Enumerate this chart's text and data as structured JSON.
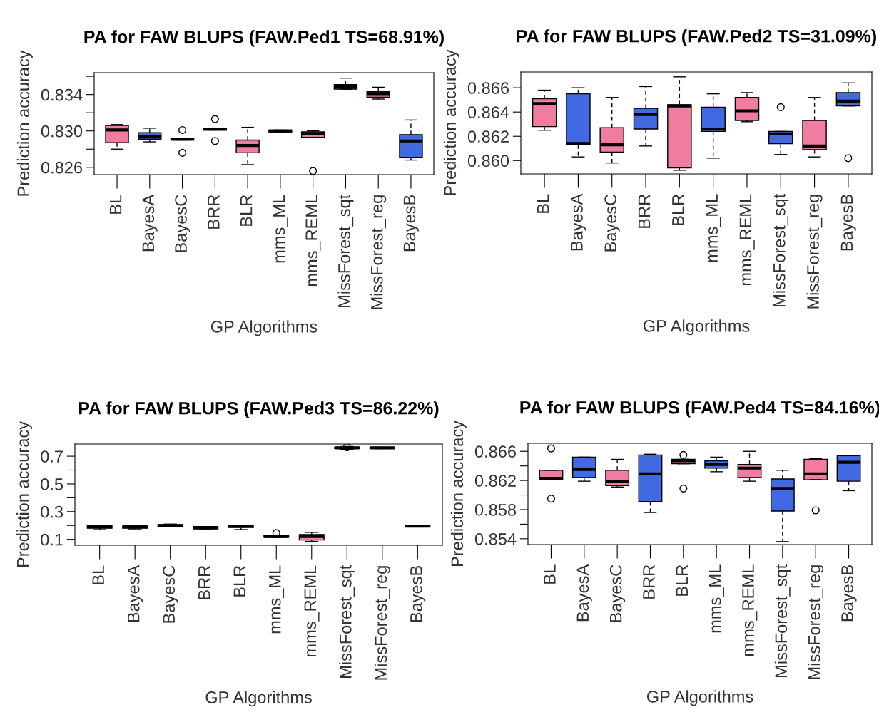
{
  "chart_data": [
    {
      "type": "box",
      "title": "PA for FAW BLUPS (FAW.Ped1 TS=68.91%)",
      "xlabel": "GP Algorithms",
      "ylabel": "Prediction accuracy",
      "categories": [
        "BL",
        "BayesA",
        "BayesC",
        "BRR",
        "BLR",
        "mms_ML",
        "mms_REML",
        "MissForest_sqt",
        "MissForest_reg",
        "BayesB"
      ],
      "colors": [
        "#f07ca0",
        "#4169e1",
        "#f07ca0",
        "#4169e1",
        "#f07ca0",
        "#4169e1",
        "#f07ca0",
        "#4169e1",
        "#f07ca0",
        "#4169e1"
      ],
      "ylim": [
        0.8252,
        0.8364
      ],
      "yticks": [
        0.826,
        {
          "value": 0.828,
          "label": null
        },
        {
          "value": 0.83,
          "label": "0.830"
        },
        {
          "value": 0.832,
          "label": null
        },
        0.834,
        {
          "value": 0.836,
          "label": null
        }
      ],
      "boxes": [
        {
          "low": 0.828,
          "q1": 0.8287,
          "median": 0.8301,
          "q3": 0.8306,
          "high": 0.8307
        },
        {
          "low": 0.8288,
          "q1": 0.8291,
          "median": 0.8294,
          "q3": 0.8298,
          "high": 0.8303
        },
        {
          "low": 0.829,
          "q1": 0.829,
          "median": 0.8291,
          "q3": 0.8292,
          "high": 0.8292,
          "outliers": [
            0.8301,
            0.8276
          ]
        },
        {
          "low": 0.8301,
          "q1": 0.8301,
          "median": 0.8302,
          "q3": 0.8303,
          "high": 0.8303,
          "outliers": [
            0.8313,
            0.8289
          ]
        },
        {
          "low": 0.8263,
          "q1": 0.8276,
          "median": 0.8284,
          "q3": 0.829,
          "high": 0.8304
        },
        {
          "low": 0.8298,
          "q1": 0.8299,
          "median": 0.83,
          "q3": 0.8301,
          "high": 0.8301
        },
        {
          "low": 0.8293,
          "q1": 0.8293,
          "median": 0.8297,
          "q3": 0.8299,
          "high": 0.83,
          "outliers": [
            0.8256
          ]
        },
        {
          "low": 0.8346,
          "q1": 0.8346,
          "median": 0.8349,
          "q3": 0.8351,
          "high": 0.8358
        },
        {
          "low": 0.8335,
          "q1": 0.8337,
          "median": 0.8341,
          "q3": 0.8343,
          "high": 0.8348
        },
        {
          "low": 0.8268,
          "q1": 0.8271,
          "median": 0.8289,
          "q3": 0.8296,
          "high": 0.8312
        }
      ]
    },
    {
      "type": "box",
      "title": "PA for FAW BLUPS (FAW.Ped2 TS=31.09%)",
      "xlabel": "GP Algorithms",
      "ylabel": "Prediction accuracy",
      "categories": [
        "BL",
        "BayesA",
        "BayesC",
        "BRR",
        "BLR",
        "mms_ML",
        "mms_REML",
        "MissForest_sqt",
        "MissForest_reg",
        "BayesB"
      ],
      "colors": [
        "#f07ca0",
        "#4169e1",
        "#f07ca0",
        "#4169e1",
        "#f07ca0",
        "#4169e1",
        "#f07ca0",
        "#4169e1",
        "#f07ca0",
        "#4169e1"
      ],
      "ylim": [
        0.8589,
        0.8673
      ],
      "yticks": [
        {
          "value": 0.86,
          "label": "0.860"
        },
        0.862,
        0.864,
        0.866
      ],
      "boxes": [
        {
          "low": 0.8625,
          "q1": 0.8628,
          "median": 0.8647,
          "q3": 0.8651,
          "high": 0.8658
        },
        {
          "low": 0.8603,
          "q1": 0.8613,
          "median": 0.8614,
          "q3": 0.8655,
          "high": 0.866
        },
        {
          "low": 0.8598,
          "q1": 0.8607,
          "median": 0.8613,
          "q3": 0.8627,
          "high": 0.8652
        },
        {
          "low": 0.8612,
          "q1": 0.8626,
          "median": 0.8638,
          "q3": 0.8643,
          "high": 0.8661
        },
        {
          "low": 0.8592,
          "q1": 0.8594,
          "median": 0.8645,
          "q3": 0.8646,
          "high": 0.8669
        },
        {
          "low": 0.8602,
          "q1": 0.8624,
          "median": 0.8626,
          "q3": 0.8644,
          "high": 0.8655
        },
        {
          "low": 0.8632,
          "q1": 0.8633,
          "median": 0.8641,
          "q3": 0.8652,
          "high": 0.8656
        },
        {
          "low": 0.8605,
          "q1": 0.8614,
          "median": 0.8622,
          "q3": 0.8624,
          "high": 0.8624,
          "outliers": [
            0.8644
          ]
        },
        {
          "low": 0.8603,
          "q1": 0.8609,
          "median": 0.8612,
          "q3": 0.8633,
          "high": 0.8652
        },
        {
          "low": 0.8645,
          "q1": 0.8645,
          "median": 0.8649,
          "q3": 0.8656,
          "high": 0.8664,
          "outliers": [
            0.8602
          ]
        }
      ]
    },
    {
      "type": "box",
      "title": "PA for FAW BLUPS (FAW.Ped3 TS=86.22%)",
      "xlabel": "GP Algorithms",
      "ylabel": "Prediction accuracy",
      "categories": [
        "BL",
        "BayesA",
        "BayesC",
        "BRR",
        "BLR",
        "mms_ML",
        "mms_REML",
        "MissForest_sqt",
        "MissForest_reg",
        "BayesB"
      ],
      "colors": [
        "#f07ca0",
        "#4169e1",
        "#f07ca0",
        "#4169e1",
        "#f07ca0",
        "#4169e1",
        "#f07ca0",
        "#4169e1",
        "#f07ca0",
        "#4169e1"
      ],
      "ylim": [
        0.057,
        0.788
      ],
      "yticks": [
        0.1,
        {
          "value": 0.2,
          "label": null
        },
        0.3,
        {
          "value": 0.4,
          "label": null
        },
        0.5,
        {
          "value": 0.6,
          "label": null
        },
        0.7
      ],
      "boxes": [
        {
          "low": 0.17,
          "q1": 0.18,
          "median": 0.19,
          "q3": 0.2,
          "high": 0.2
        },
        {
          "low": 0.175,
          "q1": 0.18,
          "median": 0.19,
          "q3": 0.195,
          "high": 0.2
        },
        {
          "low": 0.19,
          "q1": 0.19,
          "median": 0.2,
          "q3": 0.205,
          "high": 0.21
        },
        {
          "low": 0.17,
          "q1": 0.175,
          "median": 0.185,
          "q3": 0.19,
          "high": 0.19
        },
        {
          "low": 0.17,
          "q1": 0.185,
          "median": 0.195,
          "q3": 0.2,
          "high": 0.2
        },
        {
          "low": 0.115,
          "q1": 0.115,
          "median": 0.12,
          "q3": 0.125,
          "high": 0.125,
          "outliers": [
            0.145
          ]
        },
        {
          "low": 0.085,
          "q1": 0.095,
          "median": 0.12,
          "q3": 0.135,
          "high": 0.15
        },
        {
          "low": 0.75,
          "q1": 0.755,
          "median": 0.76,
          "q3": 0.765,
          "high": 0.77,
          "outliers": [
            0.765
          ]
        },
        {
          "low": 0.755,
          "q1": 0.757,
          "median": 0.76,
          "q3": 0.763,
          "high": 0.765
        },
        {
          "low": 0.19,
          "q1": 0.193,
          "median": 0.195,
          "q3": 0.197,
          "high": 0.2
        }
      ]
    },
    {
      "type": "box",
      "title": "PA for FAW BLUPS (FAW.Ped4 TS=84.16%)",
      "xlabel": "GP Algorithms",
      "ylabel": "Prediction accuracy",
      "categories": [
        "BL",
        "BayesA",
        "BayesC",
        "BRR",
        "BLR",
        "mms_ML",
        "mms_REML",
        "MissForest_sqt",
        "MissForest_reg",
        "BayesB"
      ],
      "colors": [
        "#f07ca0",
        "#4169e1",
        "#f07ca0",
        "#4169e1",
        "#f07ca0",
        "#4169e1",
        "#f07ca0",
        "#4169e1",
        "#f07ca0",
        "#4169e1"
      ],
      "ylim": [
        0.8532,
        0.8671
      ],
      "yticks": [
        0.854,
        {
          "value": 0.856,
          "label": null
        },
        0.858,
        {
          "value": 0.86,
          "label": null
        },
        0.862,
        {
          "value": 0.864,
          "label": null
        },
        0.866
      ],
      "boxes": [
        {
          "low": 0.8621,
          "q1": 0.8621,
          "median": 0.8623,
          "q3": 0.8634,
          "high": 0.8634,
          "outliers": [
            0.8664,
            0.8595
          ]
        },
        {
          "low": 0.8619,
          "q1": 0.8624,
          "median": 0.8635,
          "q3": 0.8652,
          "high": 0.8652
        },
        {
          "low": 0.8611,
          "q1": 0.8613,
          "median": 0.8619,
          "q3": 0.8634,
          "high": 0.8649
        },
        {
          "low": 0.8576,
          "q1": 0.8591,
          "median": 0.8629,
          "q3": 0.8655,
          "high": 0.8656
        },
        {
          "low": 0.8643,
          "q1": 0.8643,
          "median": 0.8647,
          "q3": 0.8649,
          "high": 0.8649,
          "outliers": [
            0.8655,
            0.8609
          ]
        },
        {
          "low": 0.8632,
          "q1": 0.8637,
          "median": 0.8642,
          "q3": 0.8647,
          "high": 0.8652
        },
        {
          "low": 0.8619,
          "q1": 0.8624,
          "median": 0.8637,
          "q3": 0.8642,
          "high": 0.866
        },
        {
          "low": 0.8536,
          "q1": 0.8578,
          "median": 0.8609,
          "q3": 0.8622,
          "high": 0.8634
        },
        {
          "low": 0.8621,
          "q1": 0.8621,
          "median": 0.8629,
          "q3": 0.8649,
          "high": 0.865,
          "outliers": [
            0.8579
          ]
        },
        {
          "low": 0.8606,
          "q1": 0.8619,
          "median": 0.8645,
          "q3": 0.8654,
          "high": 0.8654
        }
      ]
    }
  ]
}
